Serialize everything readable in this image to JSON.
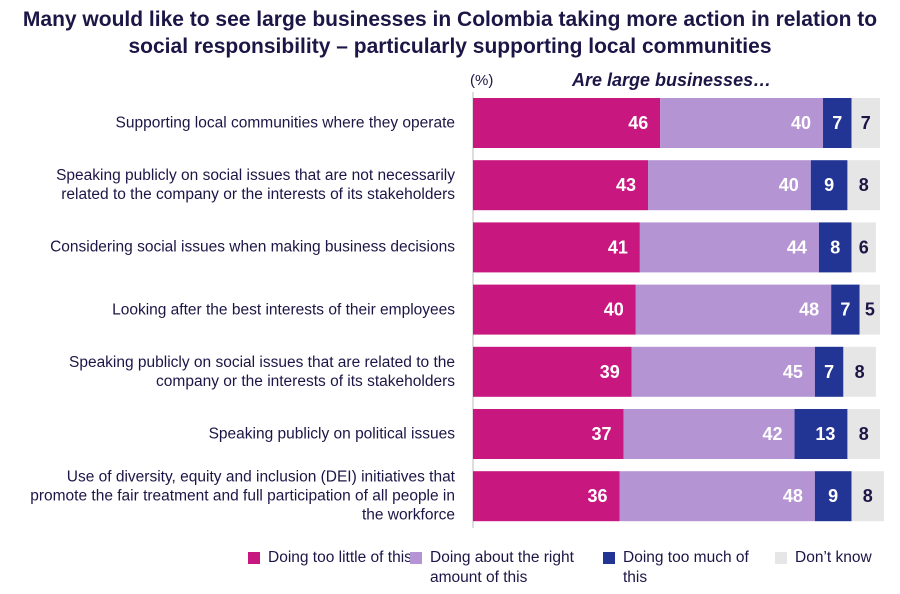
{
  "chart_data": {
    "type": "bar",
    "orientation": "horizontal",
    "stacked": true,
    "title": "Many would like to see large businesses in Colombia taking more action in relation to social responsibility – particularly supporting local communities",
    "subtitle": "Are large businesses…",
    "unit_label": "(%)",
    "categories": [
      "Supporting local communities where they operate",
      "Speaking publicly on social issues that are not necessarily related to the company or the interests of its stakeholders",
      "Considering social issues when making business decisions",
      "Looking after the best interests of their employees",
      "Speaking publicly on social issues that are related to the company or the interests of its stakeholders",
      "Speaking publicly on political issues",
      "Use of diversity, equity and inclusion (DEI) initiatives that promote the fair treatment and full participation of all people in the workforce"
    ],
    "series": [
      {
        "name": "Doing too little of this",
        "color": "#c8177f",
        "label_color": "#ffffff",
        "values": [
          46,
          43,
          41,
          40,
          39,
          37,
          36
        ]
      },
      {
        "name": "Doing about the right amount of this",
        "color": "#b594d4",
        "label_color": "#ffffff",
        "values": [
          40,
          40,
          44,
          48,
          45,
          42,
          48
        ]
      },
      {
        "name": "Doing too much of this",
        "color": "#233594",
        "label_color": "#ffffff",
        "values": [
          7,
          9,
          8,
          7,
          7,
          13,
          9
        ]
      },
      {
        "name": "Don’t know",
        "color": "#e6e6e6",
        "label_color": "#1c1646",
        "values": [
          7,
          8,
          6,
          5,
          8,
          8,
          8
        ]
      }
    ],
    "xlim": [
      0,
      100
    ],
    "grid": false,
    "legend_position": "bottom"
  }
}
